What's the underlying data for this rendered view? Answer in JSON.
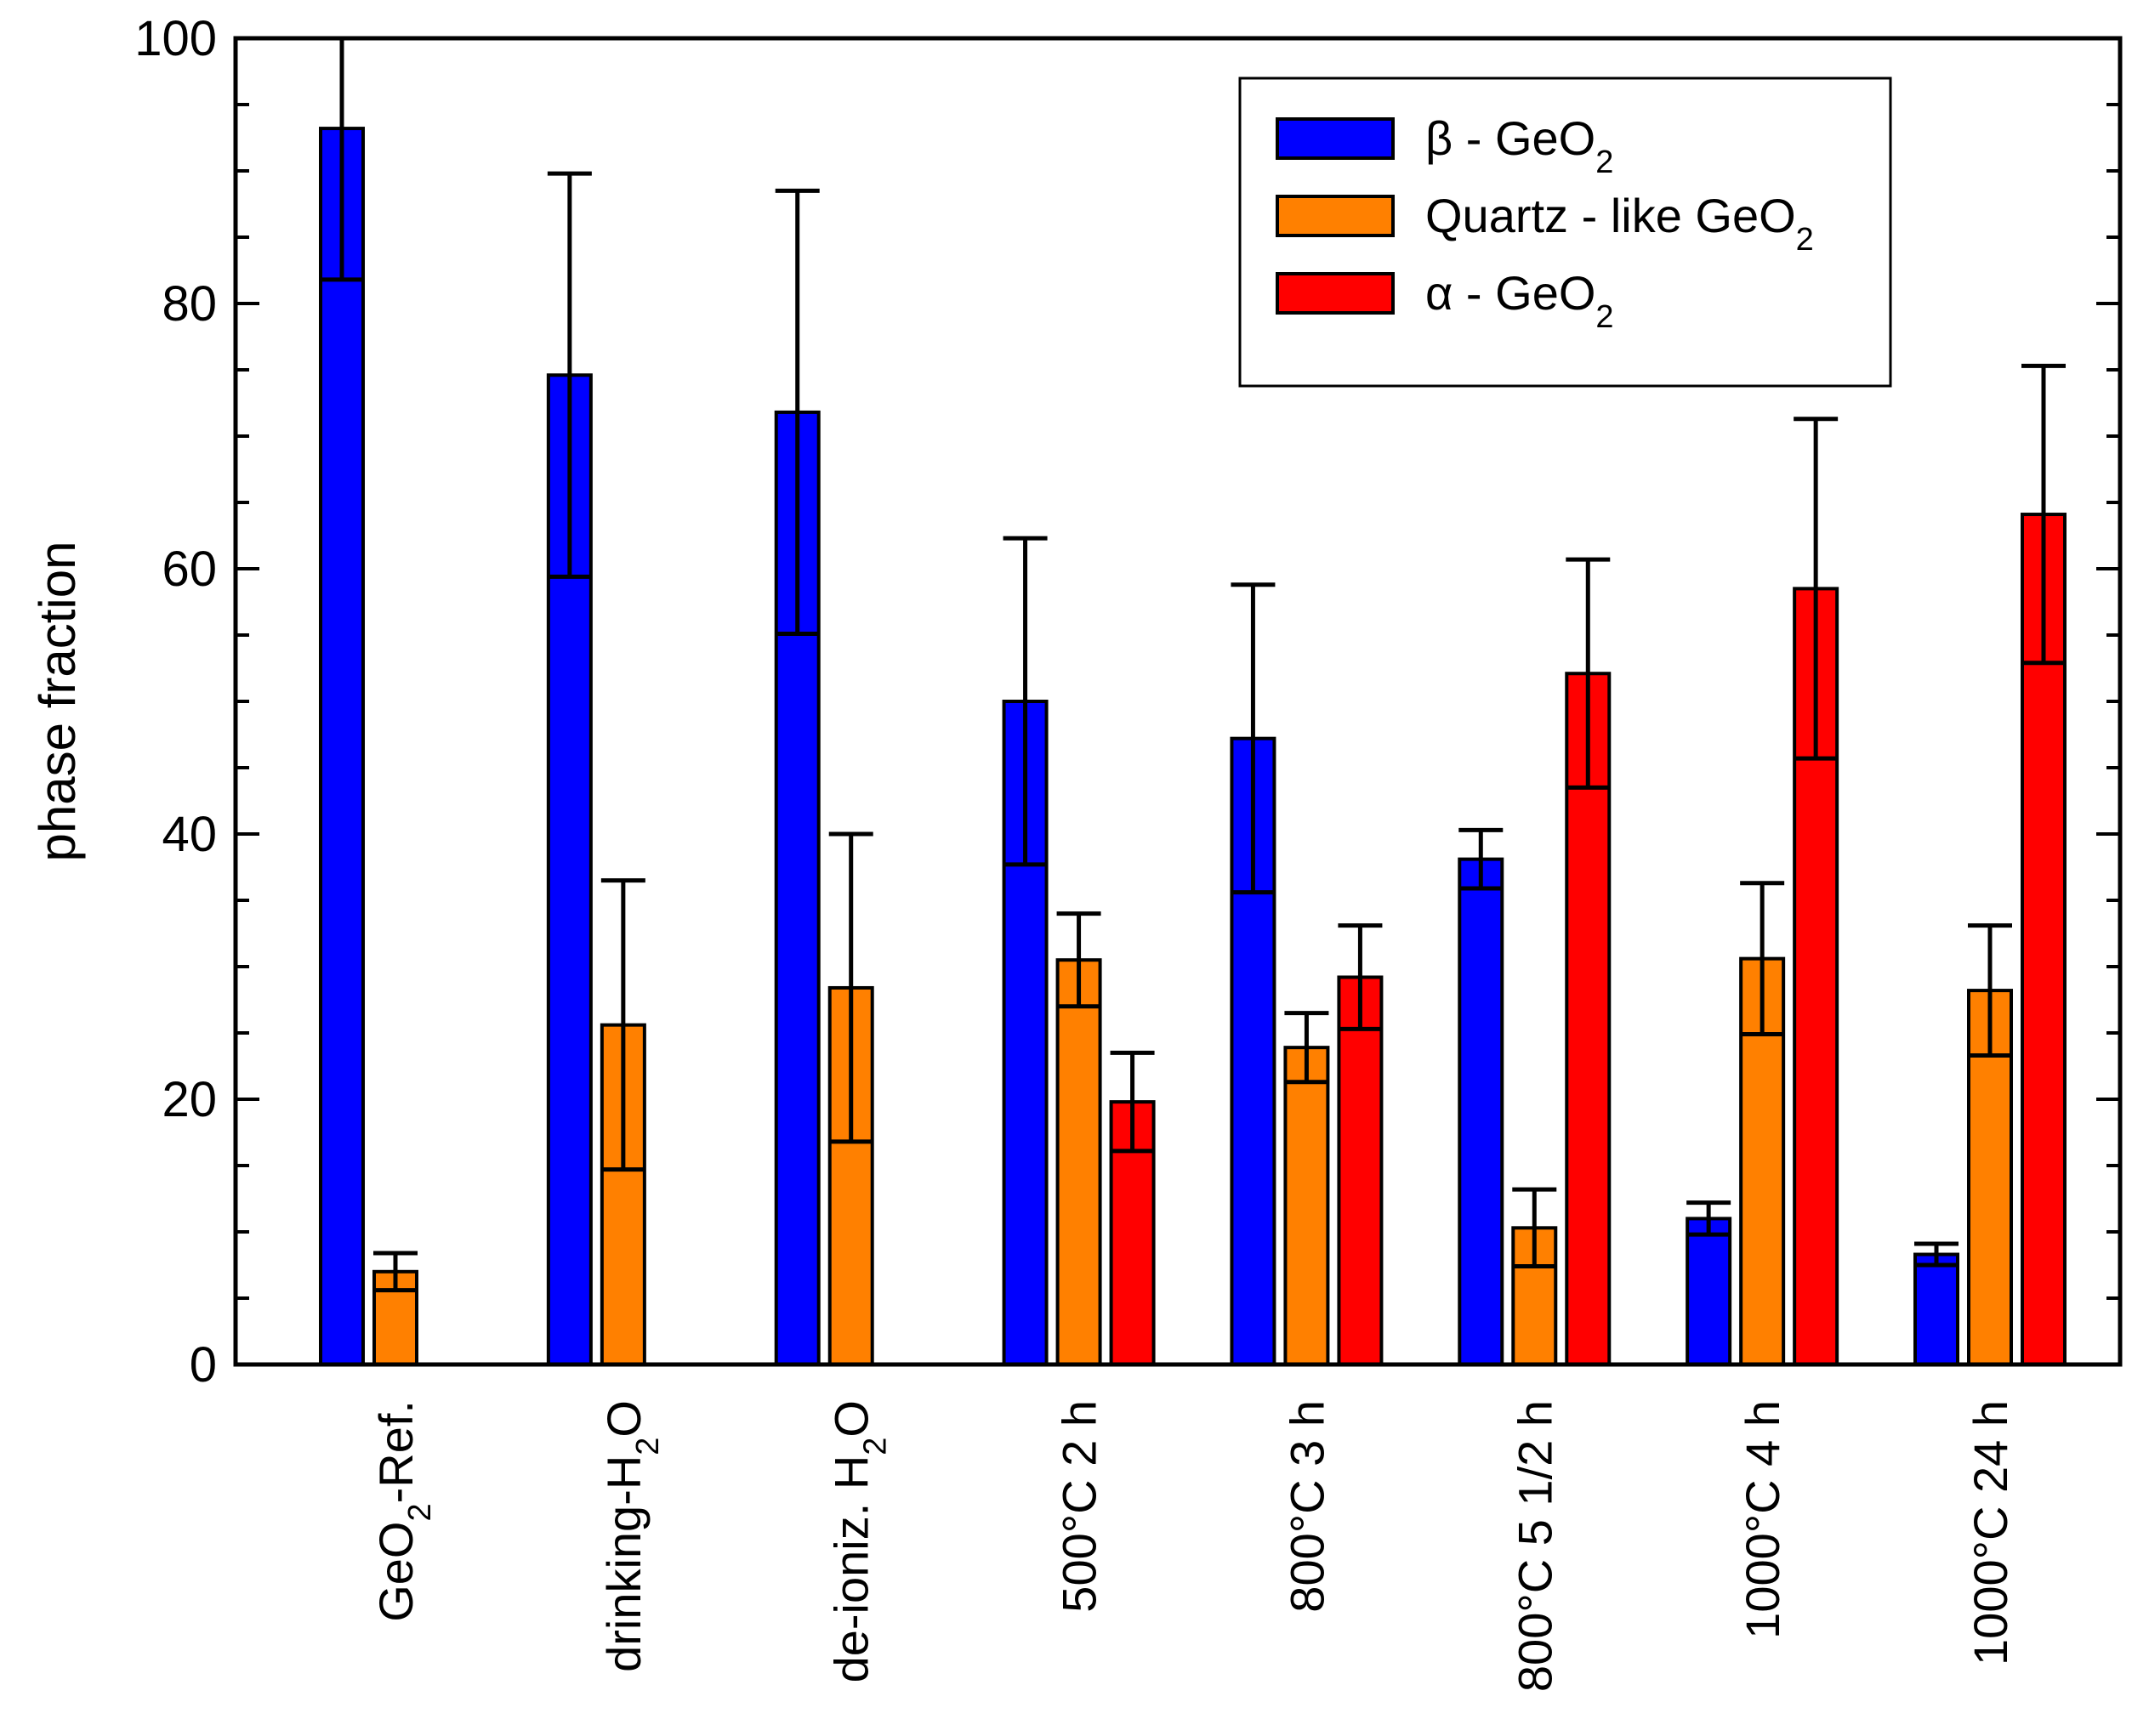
{
  "chart_data": {
    "type": "bar",
    "title": "",
    "xlabel": "",
    "ylabel": "phase fraction",
    "ylim": [
      0,
      100
    ],
    "yticks": [
      0,
      20,
      40,
      60,
      80,
      100
    ],
    "grid": false,
    "legend_position": "top-right",
    "categories": [
      {
        "base": "GeO",
        "sub": "2",
        "tail": "-Ref."
      },
      {
        "base": "drinking-H",
        "sub": "2",
        "tail": "O"
      },
      {
        "base": "de-ioniz. H",
        "sub": "2",
        "tail": "O"
      },
      {
        "base": "500°C 2 h",
        "sub": "",
        "tail": ""
      },
      {
        "base": "800°C 3 h",
        "sub": "",
        "tail": ""
      },
      {
        "base": "800°C 5 1/2 h",
        "sub": "",
        "tail": ""
      },
      {
        "base": "1000°C 4 h",
        "sub": "",
        "tail": ""
      },
      {
        "base": "1000°C 24 h",
        "sub": "",
        "tail": ""
      }
    ],
    "series": [
      {
        "name": "β - GeO2",
        "legend": {
          "base": "β - GeO",
          "sub": "2"
        },
        "color": "#0000FF",
        "values": [
          93.2,
          74.6,
          71.8,
          50.0,
          47.2,
          38.1,
          11.0,
          8.3
        ],
        "errors": [
          11.4,
          15.2,
          16.7,
          12.3,
          11.6,
          2.2,
          1.2,
          0.8
        ]
      },
      {
        "name": "Quartz - like GeO2",
        "legend": {
          "base": "Quartz - like GeO",
          "sub": "2"
        },
        "color": "#FF8000",
        "values": [
          7.0,
          25.6,
          28.4,
          30.5,
          23.9,
          10.3,
          30.6,
          28.2
        ],
        "errors": [
          1.4,
          10.9,
          11.6,
          3.5,
          2.6,
          2.9,
          5.7,
          4.9
        ]
      },
      {
        "name": "α - GeO2",
        "legend": {
          "base": "α - GeO",
          "sub": "2"
        },
        "color": "#FF0000",
        "values": [
          null,
          null,
          null,
          19.8,
          29.2,
          52.1,
          58.5,
          64.1
        ],
        "errors": [
          null,
          null,
          null,
          3.7,
          3.9,
          8.6,
          12.8,
          11.2
        ]
      }
    ]
  }
}
